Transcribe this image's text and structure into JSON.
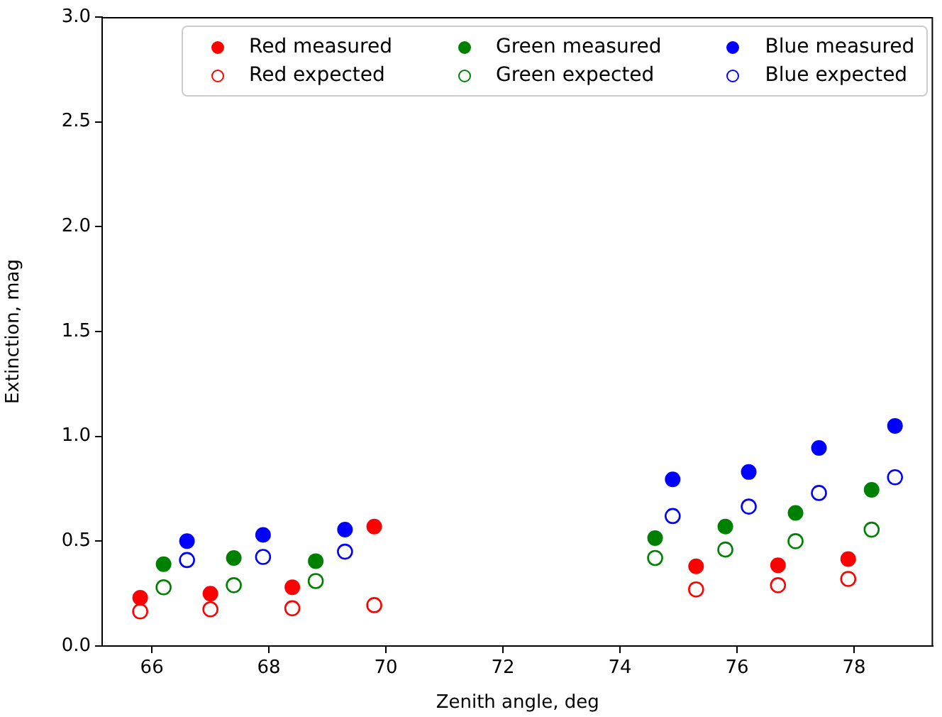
{
  "chart_data": {
    "type": "scatter",
    "xlabel": "Zenith angle, deg",
    "ylabel": "Extinction, mag",
    "xlim": [
      65.15,
      79.35
    ],
    "xticks": [
      66,
      68,
      70,
      72,
      74,
      76,
      78
    ],
    "ylim": [
      0,
      3
    ],
    "yticks": [
      {
        "value": 0,
        "label": "0.0"
      },
      0.5,
      {
        "value": 1,
        "label": "1.0"
      },
      1.5,
      {
        "value": 2,
        "label": "2.0"
      },
      2.5,
      {
        "value": 3,
        "label": "3.0"
      }
    ],
    "grid": false,
    "legend": "top right",
    "marker": "circle",
    "series": [
      {
        "name": "Red measured",
        "color": "#ff0000",
        "x": [
          65.8,
          67.0,
          68.4,
          69.8,
          75.3,
          76.7,
          77.9
        ],
        "values": [
          0.23,
          0.25,
          0.28,
          0.57,
          0.38,
          0.385,
          0.415
        ]
      },
      {
        "name": "Red expected",
        "color": "#ff0000",
        "marker": "circle-open",
        "x": [
          65.8,
          67.0,
          68.4,
          69.8,
          75.3,
          76.7,
          77.9
        ],
        "values": [
          0.165,
          0.175,
          0.18,
          0.195,
          0.27,
          0.29,
          0.32
        ]
      },
      {
        "name": "Green measured",
        "color": "#008000",
        "x": [
          66.2,
          67.4,
          68.8,
          74.6,
          75.8,
          77.0,
          78.3
        ],
        "values": [
          0.39,
          0.42,
          0.405,
          0.515,
          0.57,
          0.635,
          0.745
        ]
      },
      {
        "name": "Green expected",
        "color": "#008000",
        "marker": "circle-open",
        "x": [
          66.2,
          67.4,
          68.8,
          74.6,
          75.8,
          77.0,
          78.3
        ],
        "values": [
          0.28,
          0.29,
          0.31,
          0.42,
          0.46,
          0.5,
          0.555
        ]
      },
      {
        "name": "Blue measured",
        "color": "#0000ff",
        "x": [
          66.6,
          67.9,
          69.3,
          74.9,
          76.2,
          77.4,
          78.7
        ],
        "values": [
          0.5,
          0.53,
          0.555,
          0.795,
          0.83,
          0.945,
          1.05
        ]
      },
      {
        "name": "Blue expected",
        "color": "#0000ff",
        "marker": "circle-open",
        "x": [
          66.6,
          67.9,
          69.3,
          74.9,
          76.2,
          77.4,
          78.7
        ],
        "values": [
          0.41,
          0.425,
          0.45,
          0.62,
          0.665,
          0.73,
          0.805
        ]
      }
    ]
  }
}
